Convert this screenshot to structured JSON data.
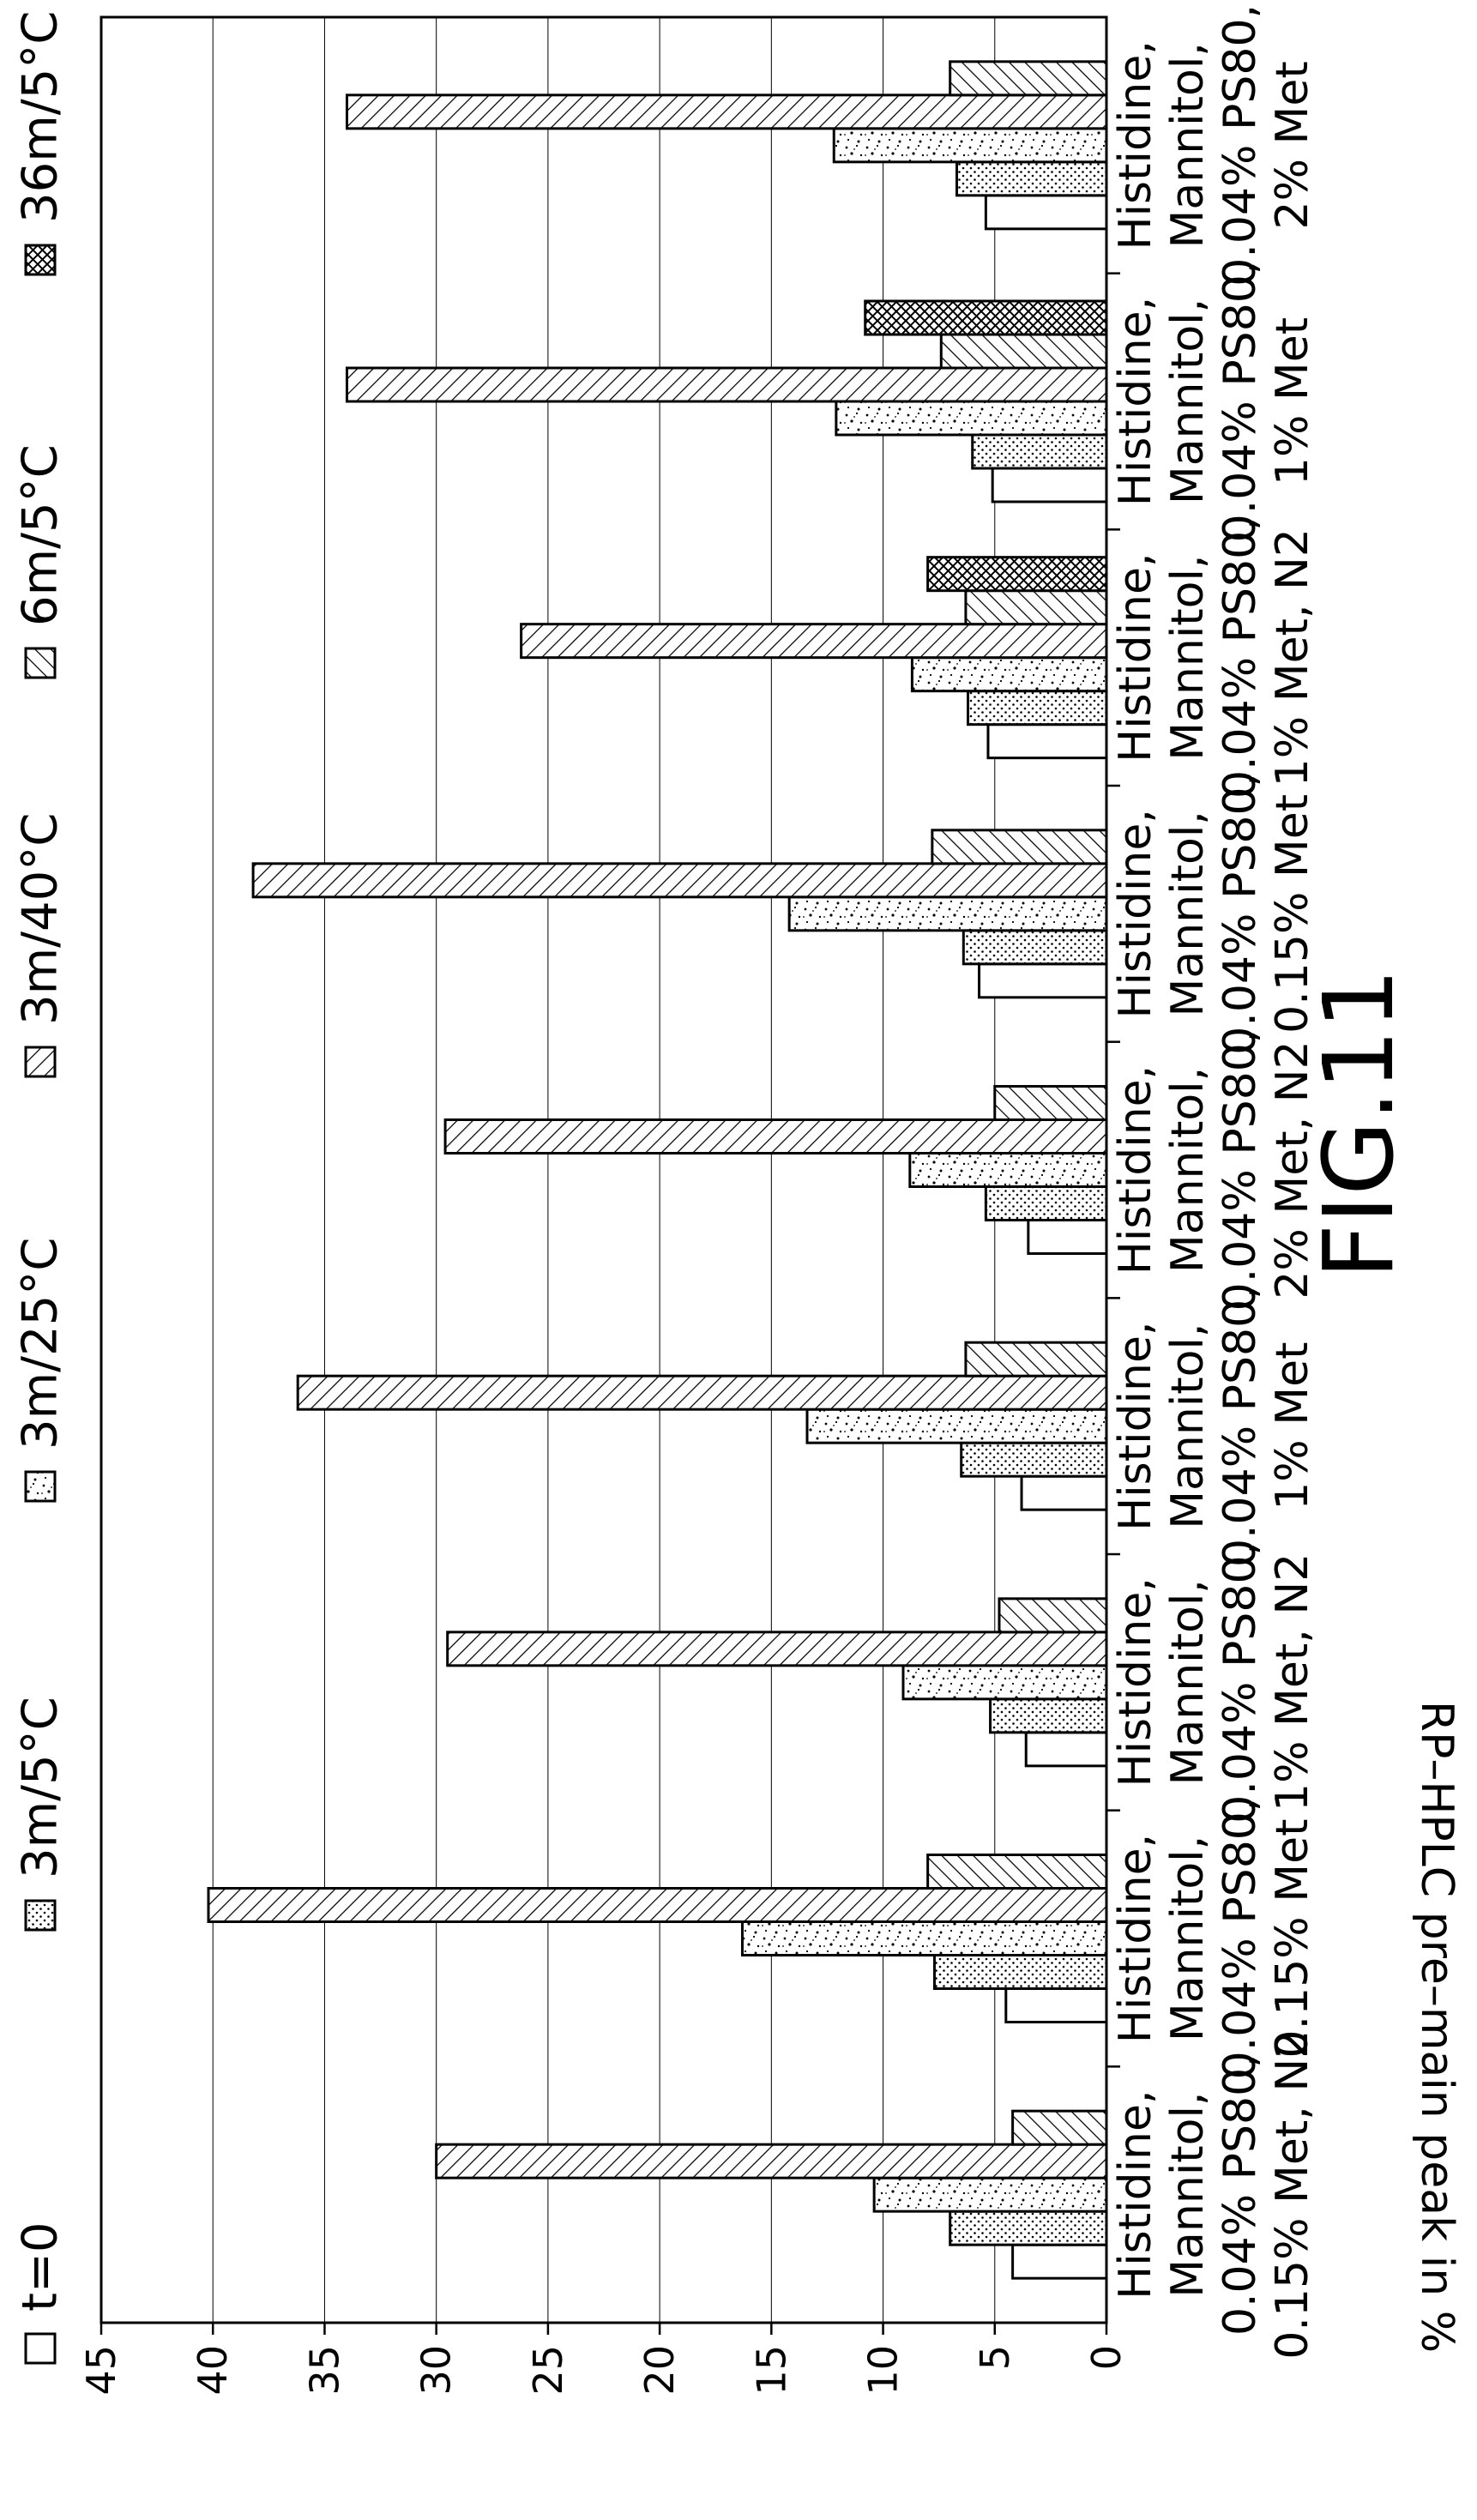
{
  "chart_data": {
    "type": "bar",
    "orientation": "horizontal",
    "figure_label": "FIG.11",
    "ylabel": "RP–HPLC pre–main peak in %",
    "value_axis": {
      "min": 0,
      "max": 45,
      "ticks": [
        0,
        5,
        10,
        15,
        20,
        25,
        30,
        35,
        40,
        45
      ]
    },
    "grid": true,
    "legend_position": "top",
    "categories": [
      [
        "Histidine,",
        "Mannitol,",
        "0.04% PS80,",
        "0.15% Met, N2"
      ],
      [
        "Histidine,",
        "Mannitol,",
        "0.04% PS80,",
        "0.15% Met"
      ],
      [
        "Histidine,",
        "Mannitol,",
        "0.04% PS80,",
        "1% Met, N2"
      ],
      [
        "Histidine,",
        "Mannitol,",
        "0.04% PS80,",
        "1% Met"
      ],
      [
        "Histidine,",
        "Mannitol,",
        "0.04% PS80,",
        "2% Met, N2"
      ],
      [
        "Histidine,",
        "Mannitol,",
        "0.04% PS80,",
        "0.15% Met"
      ],
      [
        "Histidine,",
        "Mannitol,",
        "0.04% PS80,",
        "1% Met, N2"
      ],
      [
        "Histidine,",
        "Mannitol,",
        "0.04% PS80,",
        "1% Met"
      ],
      [
        "Histidine,",
        "Mannitol,",
        "0.04% PS80,",
        "2% Met"
      ]
    ],
    "series": [
      {
        "name": "t=0",
        "pattern": "empty",
        "values": [
          4.2,
          4.5,
          3.6,
          3.8,
          3.5,
          5.7,
          5.3,
          5.1,
          5.4
        ]
      },
      {
        "name": "3m/5°C",
        "pattern": "dots",
        "values": [
          7.0,
          7.7,
          5.2,
          6.5,
          5.4,
          6.4,
          6.2,
          6.0,
          6.7
        ]
      },
      {
        "name": "3m/25°C",
        "pattern": "speckle",
        "values": [
          10.4,
          16.3,
          9.1,
          13.4,
          8.8,
          14.2,
          8.7,
          12.1,
          12.2
        ]
      },
      {
        "name": "3m/40°C",
        "pattern": "backslash",
        "values": [
          30.0,
          40.2,
          29.5,
          36.2,
          29.6,
          38.2,
          26.2,
          34.0,
          34.0
        ]
      },
      {
        "name": "6m/5°C",
        "pattern": "forwardslash",
        "values": [
          4.2,
          8.0,
          4.8,
          6.3,
          5.0,
          7.8,
          6.3,
          7.4,
          7.0
        ]
      },
      {
        "name": "36m/5°C",
        "pattern": "crosshatch",
        "values": [
          null,
          null,
          null,
          null,
          null,
          null,
          8.0,
          10.8,
          null
        ]
      }
    ]
  }
}
